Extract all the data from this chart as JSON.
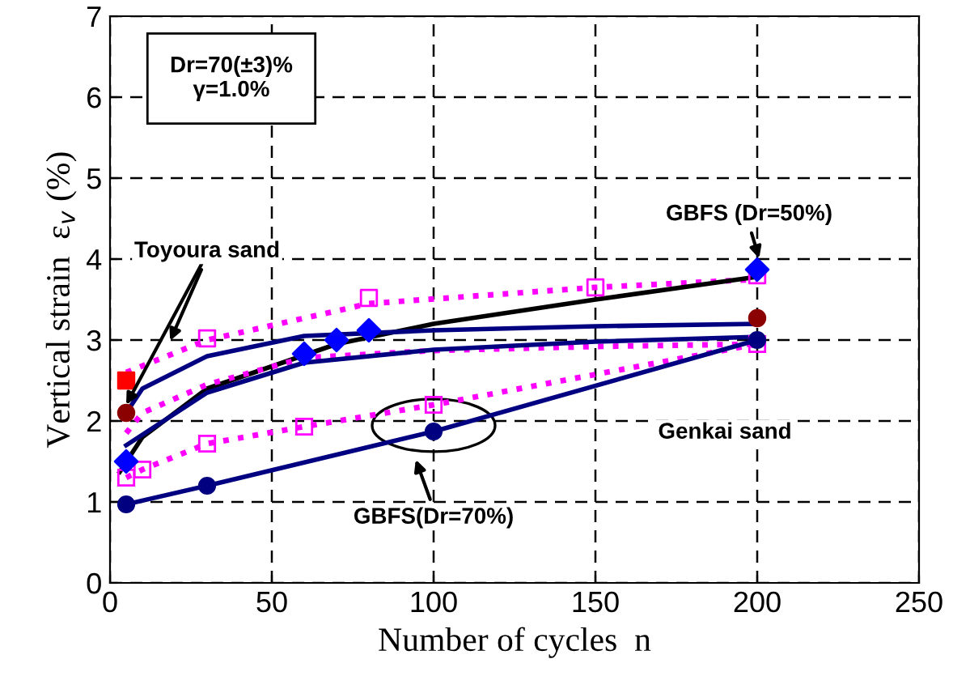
{
  "chart_data": {
    "type": "line",
    "xlabel": "Number of cycles  n",
    "ylabel": "Vertical strain  ε$_{v}$ (%)",
    "xlim": [
      0,
      250
    ],
    "xticks": [
      0,
      50,
      100,
      150,
      200,
      250
    ],
    "ylim": [
      0,
      7
    ],
    "yticks": [
      0,
      1,
      2,
      3,
      4,
      5,
      6,
      7
    ],
    "grid": true,
    "legend": false,
    "series": [
      {
        "color": "#ff00ff",
        "line_style": "dotted",
        "marker": "none",
        "x": [
          5,
          30,
          80,
          150,
          200
        ],
        "values": [
          2.6,
          3.0,
          3.45,
          3.65,
          3.75
        ]
      },
      {
        "type": "scatter",
        "color": "#ff00ff",
        "marker": "square",
        "x": [
          30,
          80,
          150,
          200
        ],
        "values": [
          3.02,
          3.52,
          3.65,
          3.8
        ]
      },
      {
        "color": "#000000",
        "line_style": "solid",
        "marker": "none",
        "x": [
          3,
          10,
          30,
          70,
          100,
          150,
          200
        ],
        "values": [
          1.37,
          1.8,
          2.4,
          2.95,
          3.2,
          3.5,
          3.78
        ]
      },
      {
        "type": "scatter",
        "color": "#0000ff",
        "marker": "diamond",
        "x": [
          5,
          60,
          70,
          80,
          200
        ],
        "values": [
          1.5,
          2.83,
          3.0,
          3.12,
          3.87
        ]
      },
      {
        "color": "#000080",
        "line_style": "solid",
        "marker": "none",
        "x": [
          5,
          10,
          30,
          60,
          100,
          150,
          200
        ],
        "values": [
          2.1,
          2.4,
          2.8,
          3.05,
          3.12,
          3.17,
          3.2
        ]
      },
      {
        "type": "scatter",
        "color": "#8b0000",
        "marker": "circle",
        "x": [
          5,
          200
        ],
        "values": [
          2.1,
          3.27
        ]
      },
      {
        "type": "scatter",
        "color": "#ff0000",
        "marker": "square",
        "x": [
          5
        ],
        "values": [
          2.5
        ]
      },
      {
        "color": "#ff00ff",
        "line_style": "dotted",
        "marker": "none",
        "x": [
          5,
          10,
          30,
          60,
          100,
          150,
          200
        ],
        "values": [
          1.85,
          2.1,
          2.45,
          2.78,
          2.87,
          2.92,
          2.95
        ]
      },
      {
        "color": "#000080",
        "line_style": "solid",
        "marker": "none",
        "x": [
          5,
          30,
          60,
          100,
          150,
          200
        ],
        "values": [
          1.7,
          2.35,
          2.72,
          2.88,
          2.98,
          3.04
        ]
      },
      {
        "color": "#ff00ff",
        "line_style": "dotted",
        "marker": "square",
        "x": [
          5,
          10,
          30,
          60,
          100,
          200
        ],
        "values": [
          1.3,
          1.4,
          1.72,
          1.93,
          2.2,
          2.95
        ]
      },
      {
        "color": "#000080",
        "line_style": "solid",
        "marker": "circle",
        "x": [
          5,
          30,
          100,
          200
        ],
        "values": [
          0.97,
          1.2,
          1.87,
          3.0
        ]
      }
    ],
    "annotations": [
      "Dr=70(±3)%\nγ=1.0%",
      {
        "text": "Toyoura sand",
        "x": 5,
        "y": 2.2
      },
      "GBFS (Dr=50%)",
      "Genkai sand",
      "GBFS(Dr=70%)"
    ]
  }
}
